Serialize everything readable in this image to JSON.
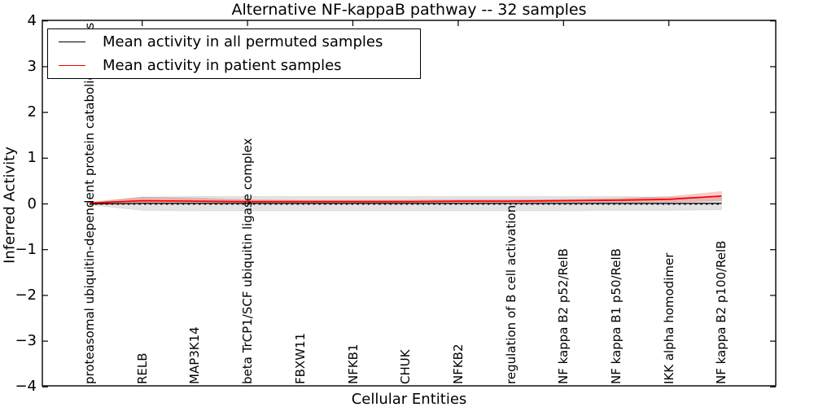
{
  "figure": {
    "kind": "matplotlib-line-plot"
  },
  "legend": {
    "items": [
      {
        "label": "Mean activity in all permuted samples",
        "color": "#000000"
      },
      {
        "label": "Mean activity in patient samples",
        "color": "#ff0000"
      }
    ]
  },
  "chart_data": {
    "type": "line",
    "title": "Alternative NF-kappaB pathway -- 32 samples",
    "xlabel": "Cellular Entities",
    "ylabel": "Inferred Activity",
    "ylim": [
      -4,
      4
    ],
    "yticks": [
      {
        "value": 4,
        "label": "4"
      },
      {
        "value": 3,
        "label": "3"
      },
      {
        "value": 2,
        "label": "2"
      },
      {
        "value": 1,
        "label": "1"
      },
      {
        "value": 0,
        "label": "0"
      },
      {
        "value": -1,
        "label": "−1"
      },
      {
        "value": -2,
        "label": "−2"
      },
      {
        "value": -3,
        "label": "−3"
      },
      {
        "value": -4,
        "label": "−4"
      }
    ],
    "grid": false,
    "legend_position": "upper left",
    "zero_line": {
      "value": 0,
      "style": "dotted",
      "color": "#000000"
    },
    "categories": [
      "proteasomal ubiquitin-dependent protein catabolic process",
      "RELB",
      "MAP3K14",
      "beta TrCP1/SCF ubiquitin ligase complex",
      "FBXW11",
      "NFKB1",
      "CHUK",
      "NFKB2",
      "regulation of B cell activation",
      "NF kappa B2 p52/RelB",
      "NF kappa B1 p50/RelB",
      "IKK alpha homodimer",
      "NF kappa B2 p100/RelB"
    ],
    "series": [
      {
        "name": "Mean activity in all permuted samples",
        "color": "#000000",
        "values": [
          0.0,
          0.01,
          0.01,
          0.01,
          0.01,
          0.01,
          0.01,
          0.01,
          0.01,
          0.01,
          0.01,
          0.01,
          0.01
        ],
        "band_upper": [
          0.02,
          0.15,
          0.16,
          0.16,
          0.16,
          0.16,
          0.16,
          0.16,
          0.16,
          0.16,
          0.16,
          0.15,
          0.15
        ],
        "band_lower": [
          -0.02,
          -0.14,
          -0.15,
          -0.15,
          -0.15,
          -0.15,
          -0.15,
          -0.15,
          -0.15,
          -0.15,
          -0.14,
          -0.14,
          -0.13
        ],
        "band_color": "rgba(0,0,0,0.11)"
      },
      {
        "name": "Mean activity in patient samples",
        "color": "#ff0000",
        "values": [
          0.02,
          0.07,
          0.06,
          0.05,
          0.05,
          0.05,
          0.05,
          0.06,
          0.06,
          0.07,
          0.08,
          0.1,
          0.17
        ],
        "band_upper": [
          0.04,
          0.15,
          0.13,
          0.09,
          0.08,
          0.08,
          0.08,
          0.09,
          0.09,
          0.1,
          0.12,
          0.16,
          0.27
        ],
        "band_lower": [
          0.0,
          0.01,
          0.01,
          0.01,
          0.01,
          0.01,
          0.02,
          0.02,
          0.02,
          0.03,
          0.03,
          0.04,
          0.07
        ],
        "band_color": "rgba(255,0,0,0.20)"
      }
    ],
    "top_axis_tick_indices": [
      1,
      3,
      5,
      7,
      9,
      11
    ]
  }
}
